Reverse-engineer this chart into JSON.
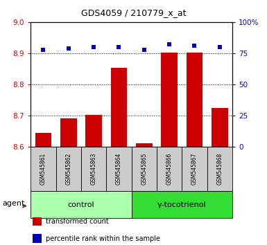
{
  "title": "GDS4059 / 210779_x_at",
  "samples": [
    "GSM545861",
    "GSM545862",
    "GSM545863",
    "GSM545864",
    "GSM545865",
    "GSM545866",
    "GSM545867",
    "GSM545868"
  ],
  "transformed_count": [
    8.645,
    8.692,
    8.703,
    8.853,
    8.613,
    8.903,
    8.903,
    8.725
  ],
  "percentile_rank": [
    78,
    79,
    80,
    80,
    78,
    82,
    81,
    80
  ],
  "ylim_left": [
    8.6,
    9.0
  ],
  "ylim_right": [
    0,
    100
  ],
  "yticks_left": [
    8.6,
    8.7,
    8.8,
    8.9,
    9.0
  ],
  "yticks_right": [
    0,
    25,
    50,
    75,
    100
  ],
  "ytick_labels_right": [
    "0",
    "25",
    "50",
    "75",
    "100%"
  ],
  "groups": [
    {
      "label": "control",
      "indices": [
        0,
        1,
        2,
        3
      ],
      "color": "#aaffaa"
    },
    {
      "label": "γ-tocotrienol",
      "indices": [
        4,
        5,
        6,
        7
      ],
      "color": "#33dd33"
    }
  ],
  "agent_label": "agent",
  "bar_color": "#cc0000",
  "dot_color": "#0000bb",
  "bar_width": 0.65,
  "background_plot": "#ffffff",
  "background_sample": "#cccccc",
  "legend_items": [
    {
      "color": "#cc0000",
      "label": "transformed count"
    },
    {
      "color": "#0000bb",
      "label": "percentile rank within the sample"
    }
  ],
  "gridline_style": "dotted",
  "gridline_color": "#000000",
  "title_fontsize": 9,
  "tick_fontsize": 7.5,
  "sample_fontsize": 5.5,
  "group_fontsize": 8,
  "legend_fontsize": 7,
  "agent_fontsize": 8
}
